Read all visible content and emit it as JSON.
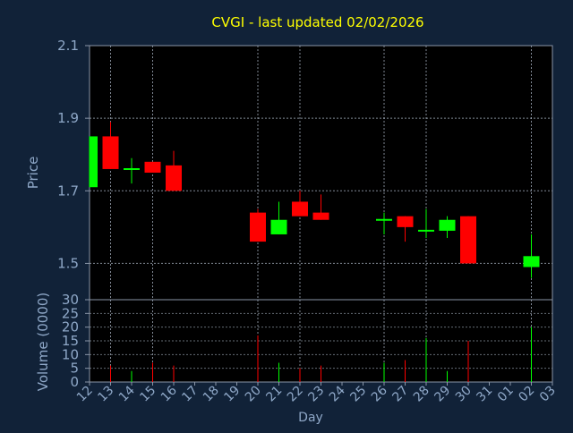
{
  "chart_data": {
    "type": "candlestick",
    "title": "CVGI - last updated 02/02/2026",
    "xlabel": "Day",
    "price_panel": {
      "ylabel": "Price",
      "ylim": [
        1.4,
        2.1
      ],
      "yticks": [
        "2.1",
        "1.9",
        "1.7",
        "1.5"
      ],
      "ytick_values": [
        2.1,
        1.9,
        1.7,
        1.5
      ]
    },
    "volume_panel": {
      "ylabel": "Volume (0000)",
      "ylim": [
        0,
        30
      ],
      "yticks": [
        "30",
        "25",
        "20",
        "15",
        "10",
        "5",
        "0"
      ],
      "ytick_values": [
        30,
        25,
        20,
        15,
        10,
        5,
        0
      ]
    },
    "x_ticks": [
      "12",
      "13",
      "14",
      "15",
      "16",
      "17",
      "18",
      "19",
      "20",
      "21",
      "22",
      "23",
      "24",
      "25",
      "26",
      "27",
      "28",
      "29",
      "30",
      "31",
      "01",
      "02",
      "03"
    ],
    "x_vertical_grid_days": [
      "13",
      "15",
      "20",
      "22",
      "26",
      "28",
      "02"
    ],
    "candles": [
      {
        "day": "12",
        "open": 1.71,
        "high": 1.85,
        "low": 1.71,
        "close": 1.85
      },
      {
        "day": "13",
        "open": 1.85,
        "high": 1.89,
        "low": 1.76,
        "close": 1.76
      },
      {
        "day": "14",
        "open": 1.76,
        "high": 1.79,
        "low": 1.72,
        "close": 1.76
      },
      {
        "day": "15",
        "open": 1.78,
        "high": 1.78,
        "low": 1.75,
        "close": 1.75
      },
      {
        "day": "16",
        "open": 1.77,
        "high": 1.81,
        "low": 1.7,
        "close": 1.7
      },
      {
        "day": "20",
        "open": 1.64,
        "high": 1.65,
        "low": 1.56,
        "close": 1.56
      },
      {
        "day": "21",
        "open": 1.58,
        "high": 1.67,
        "low": 1.58,
        "close": 1.62
      },
      {
        "day": "22",
        "open": 1.67,
        "high": 1.7,
        "low": 1.63,
        "close": 1.63
      },
      {
        "day": "23",
        "open": 1.64,
        "high": 1.69,
        "low": 1.62,
        "close": 1.62
      },
      {
        "day": "26",
        "open": 1.62,
        "high": 1.64,
        "low": 1.58,
        "close": 1.62
      },
      {
        "day": "27",
        "open": 1.63,
        "high": 1.63,
        "low": 1.56,
        "close": 1.6
      },
      {
        "day": "28",
        "open": 1.59,
        "high": 1.65,
        "low": 1.57,
        "close": 1.59
      },
      {
        "day": "29",
        "open": 1.59,
        "high": 1.63,
        "low": 1.57,
        "close": 1.62
      },
      {
        "day": "30",
        "open": 1.63,
        "high": 1.63,
        "low": 1.5,
        "close": 1.5
      },
      {
        "day": "02",
        "open": 1.49,
        "high": 1.58,
        "low": 1.46,
        "close": 1.52
      }
    ],
    "volumes": [
      {
        "day": "12",
        "value": 0,
        "up": true
      },
      {
        "day": "13",
        "value": 6,
        "up": false
      },
      {
        "day": "14",
        "value": 4,
        "up": true
      },
      {
        "day": "15",
        "value": 7,
        "up": false
      },
      {
        "day": "16",
        "value": 6,
        "up": false
      },
      {
        "day": "20",
        "value": 17,
        "up": false
      },
      {
        "day": "21",
        "value": 7,
        "up": true
      },
      {
        "day": "22",
        "value": 5,
        "up": false
      },
      {
        "day": "23",
        "value": 6,
        "up": false
      },
      {
        "day": "26",
        "value": 7,
        "up": true
      },
      {
        "day": "27",
        "value": 8,
        "up": false
      },
      {
        "day": "28",
        "value": 16,
        "up": true
      },
      {
        "day": "29",
        "value": 4,
        "up": true
      },
      {
        "day": "30",
        "value": 15,
        "up": false
      },
      {
        "day": "02",
        "value": 20,
        "up": true
      }
    ],
    "colors": {
      "background": "#112238",
      "plot_area": "#000000",
      "grid": "#b8c4d4",
      "axis": "#8a96a8",
      "tick_text": "#8fa8c8",
      "title": "#ffff00",
      "up": "#00ff00",
      "down": "#ff0000"
    },
    "grid": true
  }
}
